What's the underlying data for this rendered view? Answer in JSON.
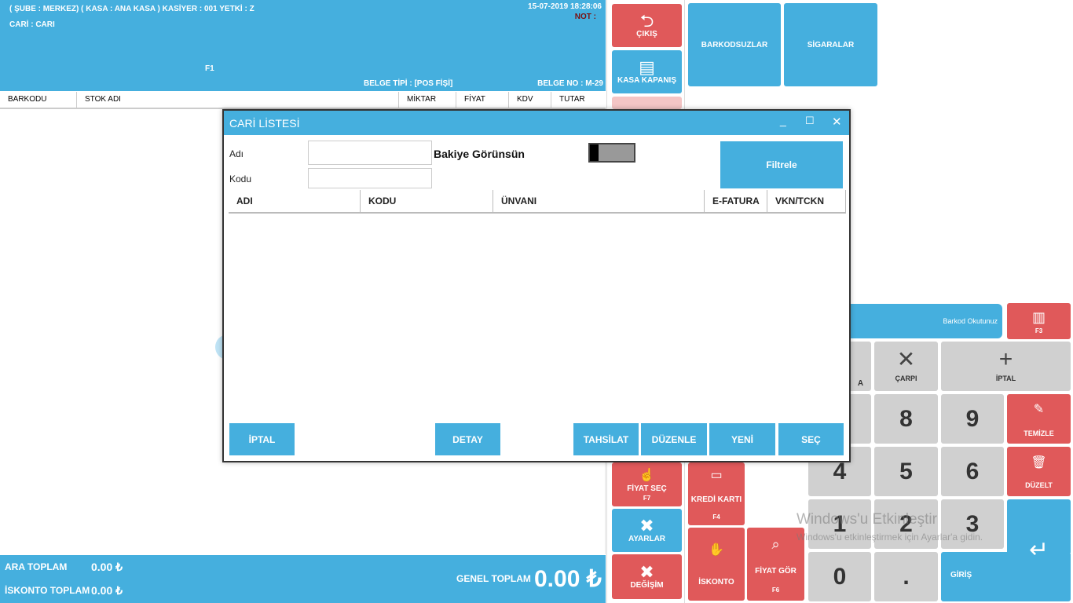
{
  "header": {
    "info_line": "( ŞUBE : MERKEZ) ( KASA : ANA KASA ) KASİYER : 001 YETKİ : Z",
    "datetime": "15-07-2019 18:28:06",
    "cari_label": "CARİ : CARI",
    "not_label": "NOT :",
    "f1": "F1",
    "belge_tipi": "BELGE TİPİ : [POS FİŞİ]",
    "belge_no": "BELGE NO :  M-29"
  },
  "table_headers": [
    "BARKODU",
    "STOK ADI",
    "MİKTAR",
    "FİYAT",
    "KDV",
    "TUTAR"
  ],
  "footer": {
    "ara_toplam_label": "ARA TOPLAM",
    "ara_toplam_value": "0.00 ₺",
    "iskonto_label": "İSKONTO TOPLAM",
    "iskonto_value": "0.00 ₺",
    "genel_label": "GENEL TOPLAM",
    "genel_value": "0.00 ₺"
  },
  "side_buttons": {
    "cikis": "ÇIKIŞ",
    "kasa_kapanis": "KASA KAPANIŞ",
    "fiyat_sec": "FİYAT SEÇ",
    "fiyat_sec_key": "F7",
    "ayarlar": "AYARLAR",
    "degisim": "DEĞİŞİM",
    "kredi_karti": "KREDİ KARTI",
    "kredi_karti_key": "F4",
    "iskonto": "İSKONTO",
    "fiyat_gor": "FİYAT GÖR",
    "fiyat_gor_key": "F6"
  },
  "categories": [
    "BARKODSUZLAR",
    "SİGARALAR"
  ],
  "barcode": {
    "label": "Barkod Okutunuz",
    "key": "F3",
    "partial_a": "A"
  },
  "keypad": {
    "carpi": "ÇARPI",
    "iptal": "İPTAL",
    "temizle": "TEMİZLE",
    "duzelt": "DÜZELT",
    "giris": "GİRİŞ",
    "k8": "8",
    "k9": "9",
    "k4": "4",
    "k5": "5",
    "k6": "6",
    "k1": "1",
    "k2": "2",
    "k3": "3",
    "k0": "0",
    "kdot": "."
  },
  "watermark": {
    "line1": "Windows'u Etkinleştir",
    "line2": "Windows'u etkinleştirmek için Ayarlar'a gidin."
  },
  "dialog": {
    "title": "CARİ LİSTESİ",
    "adi_label": "Adı",
    "kodu_label": "Kodu",
    "bakiye_label": "Bakiye Görünsün",
    "filtrele": "Filtrele",
    "columns": [
      "ADI",
      "KODU",
      "ÜNVANI",
      "E-FATURA",
      "VKN/TCKN"
    ],
    "buttons": {
      "iptal": "İPTAL",
      "detay": "DETAY",
      "tahsilat": "TAHSİLAT",
      "duzenle": "DÜZENLE",
      "yeni": "YENİ",
      "sec": "SEÇ"
    }
  },
  "colors": {
    "primary_blue": "#45afde",
    "red": "#e0595a",
    "key_gray": "#d0d0d0"
  }
}
